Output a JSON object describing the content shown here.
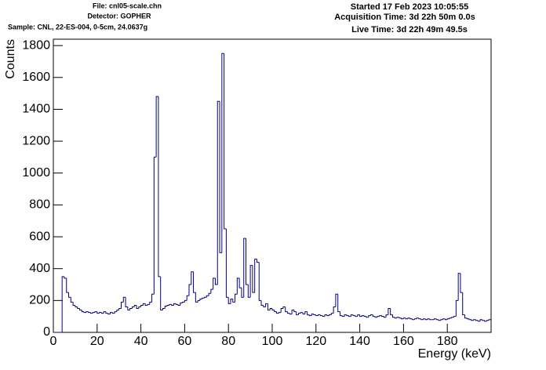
{
  "chart_data": {
    "type": "histogram",
    "annotations": [
      "File: cnl05-scale.chn",
      "Detector: GOPHER",
      "Sample: CNL, 22-ES-004, 0-5cm, 24.0637g",
      "Started 17 Feb 2023 10:05:55",
      "Acquisition Time: 3d 22h 50m 0.0s",
      "Live Time: 3d 22h 49m 49.5s"
    ],
    "xlabel": "Energy (keV)",
    "ylabel": "Counts",
    "color": "#000080",
    "xlim": [
      0,
      200
    ],
    "ylim": [
      0,
      1840
    ],
    "xticks": [
      0,
      20,
      40,
      60,
      80,
      100,
      120,
      140,
      160,
      180
    ],
    "yticks": [
      0,
      200,
      400,
      600,
      800,
      1000,
      1200,
      1400,
      1600,
      1800
    ],
    "bins": [
      0,
      1,
      2,
      3,
      4,
      5,
      6,
      7,
      8,
      9,
      10,
      11,
      12,
      13,
      14,
      15,
      16,
      17,
      18,
      19,
      20,
      21,
      22,
      23,
      24,
      25,
      26,
      27,
      28,
      29,
      30,
      31,
      32,
      33,
      34,
      35,
      36,
      37,
      38,
      39,
      40,
      41,
      42,
      43,
      44,
      45,
      46,
      47,
      48,
      49,
      50,
      51,
      52,
      53,
      54,
      55,
      56,
      57,
      58,
      59,
      60,
      61,
      62,
      63,
      64,
      65,
      66,
      67,
      68,
      69,
      70,
      71,
      72,
      73,
      74,
      75,
      76,
      77,
      78,
      79,
      80,
      81,
      82,
      83,
      84,
      85,
      86,
      87,
      88,
      89,
      90,
      91,
      92,
      93,
      94,
      95,
      96,
      97,
      98,
      99,
      100,
      101,
      102,
      103,
      104,
      105,
      106,
      107,
      108,
      109,
      110,
      111,
      112,
      113,
      114,
      115,
      116,
      117,
      118,
      119,
      120,
      121,
      122,
      123,
      124,
      125,
      126,
      127,
      128,
      129,
      130,
      131,
      132,
      133,
      134,
      135,
      136,
      137,
      138,
      139,
      140,
      141,
      142,
      143,
      144,
      145,
      146,
      147,
      148,
      149,
      150,
      151,
      152,
      153,
      154,
      155,
      156,
      157,
      158,
      159,
      160,
      161,
      162,
      163,
      164,
      165,
      166,
      167,
      168,
      169,
      170,
      171,
      172,
      173,
      174,
      175,
      176,
      177,
      178,
      179,
      180,
      181,
      182,
      183,
      184,
      185,
      186,
      187,
      188,
      189,
      190,
      191,
      192,
      193,
      194,
      195,
      196,
      197,
      198,
      199,
      200
    ],
    "values": [
      0,
      0,
      0,
      0,
      350,
      340,
      250,
      220,
      190,
      170,
      160,
      150,
      140,
      130,
      125,
      130,
      125,
      120,
      125,
      130,
      120,
      125,
      120,
      130,
      120,
      115,
      125,
      120,
      130,
      140,
      150,
      190,
      220,
      160,
      140,
      150,
      160,
      170,
      150,
      160,
      170,
      180,
      170,
      175,
      190,
      240,
      1100,
      1480,
      350,
      140,
      150,
      165,
      170,
      175,
      170,
      180,
      175,
      170,
      185,
      190,
      200,
      230,
      300,
      380,
      250,
      190,
      200,
      210,
      215,
      220,
      230,
      245,
      270,
      340,
      300,
      1450,
      500,
      1750,
      650,
      220,
      180,
      210,
      190,
      240,
      340,
      280,
      220,
      590,
      300,
      220,
      420,
      250,
      460,
      440,
      200,
      170,
      160,
      180,
      140,
      150,
      140,
      130,
      120,
      125,
      150,
      160,
      130,
      120,
      115,
      140,
      130,
      110,
      120,
      125,
      115,
      130,
      110,
      105,
      115,
      110,
      105,
      110,
      105,
      100,
      110,
      105,
      110,
      120,
      160,
      240,
      130,
      105,
      100,
      110,
      105,
      100,
      110,
      105,
      100,
      110,
      100,
      105,
      100,
      95,
      105,
      110,
      100,
      95,
      100,
      105,
      100,
      95,
      110,
      150,
      110,
      95,
      90,
      95,
      90,
      85,
      90,
      85,
      90,
      85,
      80,
      85,
      90,
      85,
      80,
      85,
      80,
      85,
      80,
      80,
      85,
      80,
      75,
      80,
      85,
      80,
      85,
      90,
      95,
      100,
      200,
      370,
      250,
      110,
      90,
      85,
      80,
      75,
      80,
      75,
      70,
      80,
      75,
      70,
      75,
      80
    ]
  }
}
